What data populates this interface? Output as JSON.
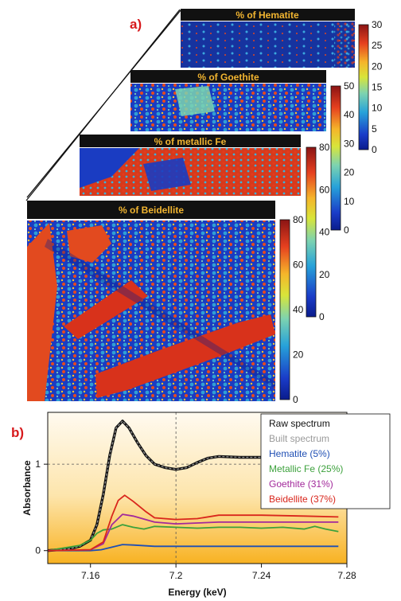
{
  "panel_a_label": "a)",
  "panel_b_label": "b)",
  "maps": [
    {
      "key": "hematite",
      "title": "% of Hematite",
      "colorbar_ticks": [
        "30",
        "25",
        "20",
        "15",
        "10",
        "5",
        "0"
      ]
    },
    {
      "key": "goethite",
      "title": "% of Goethite",
      "colorbar_ticks": [
        "50",
        "40",
        "30",
        "20",
        "10",
        "0"
      ]
    },
    {
      "key": "metallic_fe",
      "title": "% of metallic Fe",
      "colorbar_ticks": [
        "80",
        "60",
        "40",
        "20",
        "0"
      ]
    },
    {
      "key": "beidellite",
      "title": "% of Beidellite",
      "colorbar_ticks": [
        "80",
        "60",
        "40",
        "20",
        "0"
      ]
    }
  ],
  "chart_data": {
    "type": "line",
    "xlabel": "Energy (keV)",
    "ylabel": "Absorbance",
    "xlim": [
      7.14,
      7.28
    ],
    "ylim": [
      -0.15,
      1.6
    ],
    "xticks": [
      "7.16",
      "7.2",
      "7.24",
      "7.28"
    ],
    "yticks": [
      "0",
      "1"
    ],
    "grid": "dashed at x=7.2, y=1",
    "legend_position": "top-right",
    "series": [
      {
        "name": "Raw spectrum",
        "color": "#111111",
        "x": [
          7.14,
          7.15,
          7.155,
          7.16,
          7.163,
          7.166,
          7.169,
          7.172,
          7.175,
          7.178,
          7.182,
          7.186,
          7.19,
          7.195,
          7.2,
          7.205,
          7.21,
          7.215,
          7.22,
          7.23,
          7.24,
          7.25,
          7.26,
          7.27,
          7.276
        ],
        "y": [
          0.0,
          0.02,
          0.05,
          0.12,
          0.3,
          0.65,
          1.1,
          1.42,
          1.5,
          1.42,
          1.25,
          1.1,
          1.0,
          0.96,
          0.94,
          0.96,
          1.02,
          1.07,
          1.09,
          1.08,
          1.08,
          1.09,
          1.08,
          1.09,
          1.08
        ]
      },
      {
        "name": "Built spectrum",
        "color": "#9a9a9a",
        "x": [
          7.14,
          7.15,
          7.155,
          7.16,
          7.163,
          7.166,
          7.169,
          7.172,
          7.175,
          7.178,
          7.182,
          7.186,
          7.19,
          7.195,
          7.2,
          7.205,
          7.21,
          7.215,
          7.22,
          7.23,
          7.24,
          7.25,
          7.26,
          7.27,
          7.276
        ],
        "y": [
          0.0,
          0.02,
          0.05,
          0.12,
          0.3,
          0.65,
          1.1,
          1.42,
          1.5,
          1.42,
          1.25,
          1.1,
          1.0,
          0.96,
          0.94,
          0.96,
          1.02,
          1.07,
          1.09,
          1.08,
          1.08,
          1.09,
          1.08,
          1.09,
          1.08
        ]
      },
      {
        "name": "Hematite (5%)",
        "color": "#1f4fb4",
        "x": [
          7.14,
          7.16,
          7.165,
          7.17,
          7.175,
          7.18,
          7.19,
          7.2,
          7.22,
          7.24,
          7.26,
          7.276
        ],
        "y": [
          0.0,
          0.0,
          0.01,
          0.04,
          0.07,
          0.065,
          0.05,
          0.05,
          0.05,
          0.05,
          0.05,
          0.05
        ]
      },
      {
        "name": "Metallic Fe (25%)",
        "color": "#3ca13c",
        "x": [
          7.14,
          7.155,
          7.16,
          7.163,
          7.166,
          7.17,
          7.175,
          7.18,
          7.185,
          7.19,
          7.2,
          7.21,
          7.22,
          7.23,
          7.24,
          7.25,
          7.26,
          7.265,
          7.27,
          7.276
        ],
        "y": [
          0.0,
          0.06,
          0.12,
          0.2,
          0.24,
          0.25,
          0.3,
          0.27,
          0.25,
          0.28,
          0.27,
          0.26,
          0.27,
          0.27,
          0.26,
          0.27,
          0.25,
          0.28,
          0.25,
          0.22
        ]
      },
      {
        "name": "Goethite (31%)",
        "color": "#a2299b",
        "x": [
          7.14,
          7.16,
          7.166,
          7.17,
          7.175,
          7.18,
          7.19,
          7.2,
          7.21,
          7.22,
          7.24,
          7.26,
          7.276
        ],
        "y": [
          0.0,
          0.01,
          0.08,
          0.3,
          0.42,
          0.4,
          0.33,
          0.31,
          0.32,
          0.33,
          0.33,
          0.33,
          0.33
        ]
      },
      {
        "name": "Beidellite (37%)",
        "color": "#d9261c",
        "x": [
          7.14,
          7.16,
          7.166,
          7.17,
          7.173,
          7.176,
          7.18,
          7.186,
          7.19,
          7.2,
          7.21,
          7.22,
          7.24,
          7.26,
          7.276
        ],
        "y": [
          0.0,
          0.01,
          0.1,
          0.4,
          0.58,
          0.64,
          0.57,
          0.45,
          0.38,
          0.36,
          0.37,
          0.41,
          0.41,
          0.4,
          0.39
        ]
      }
    ]
  }
}
